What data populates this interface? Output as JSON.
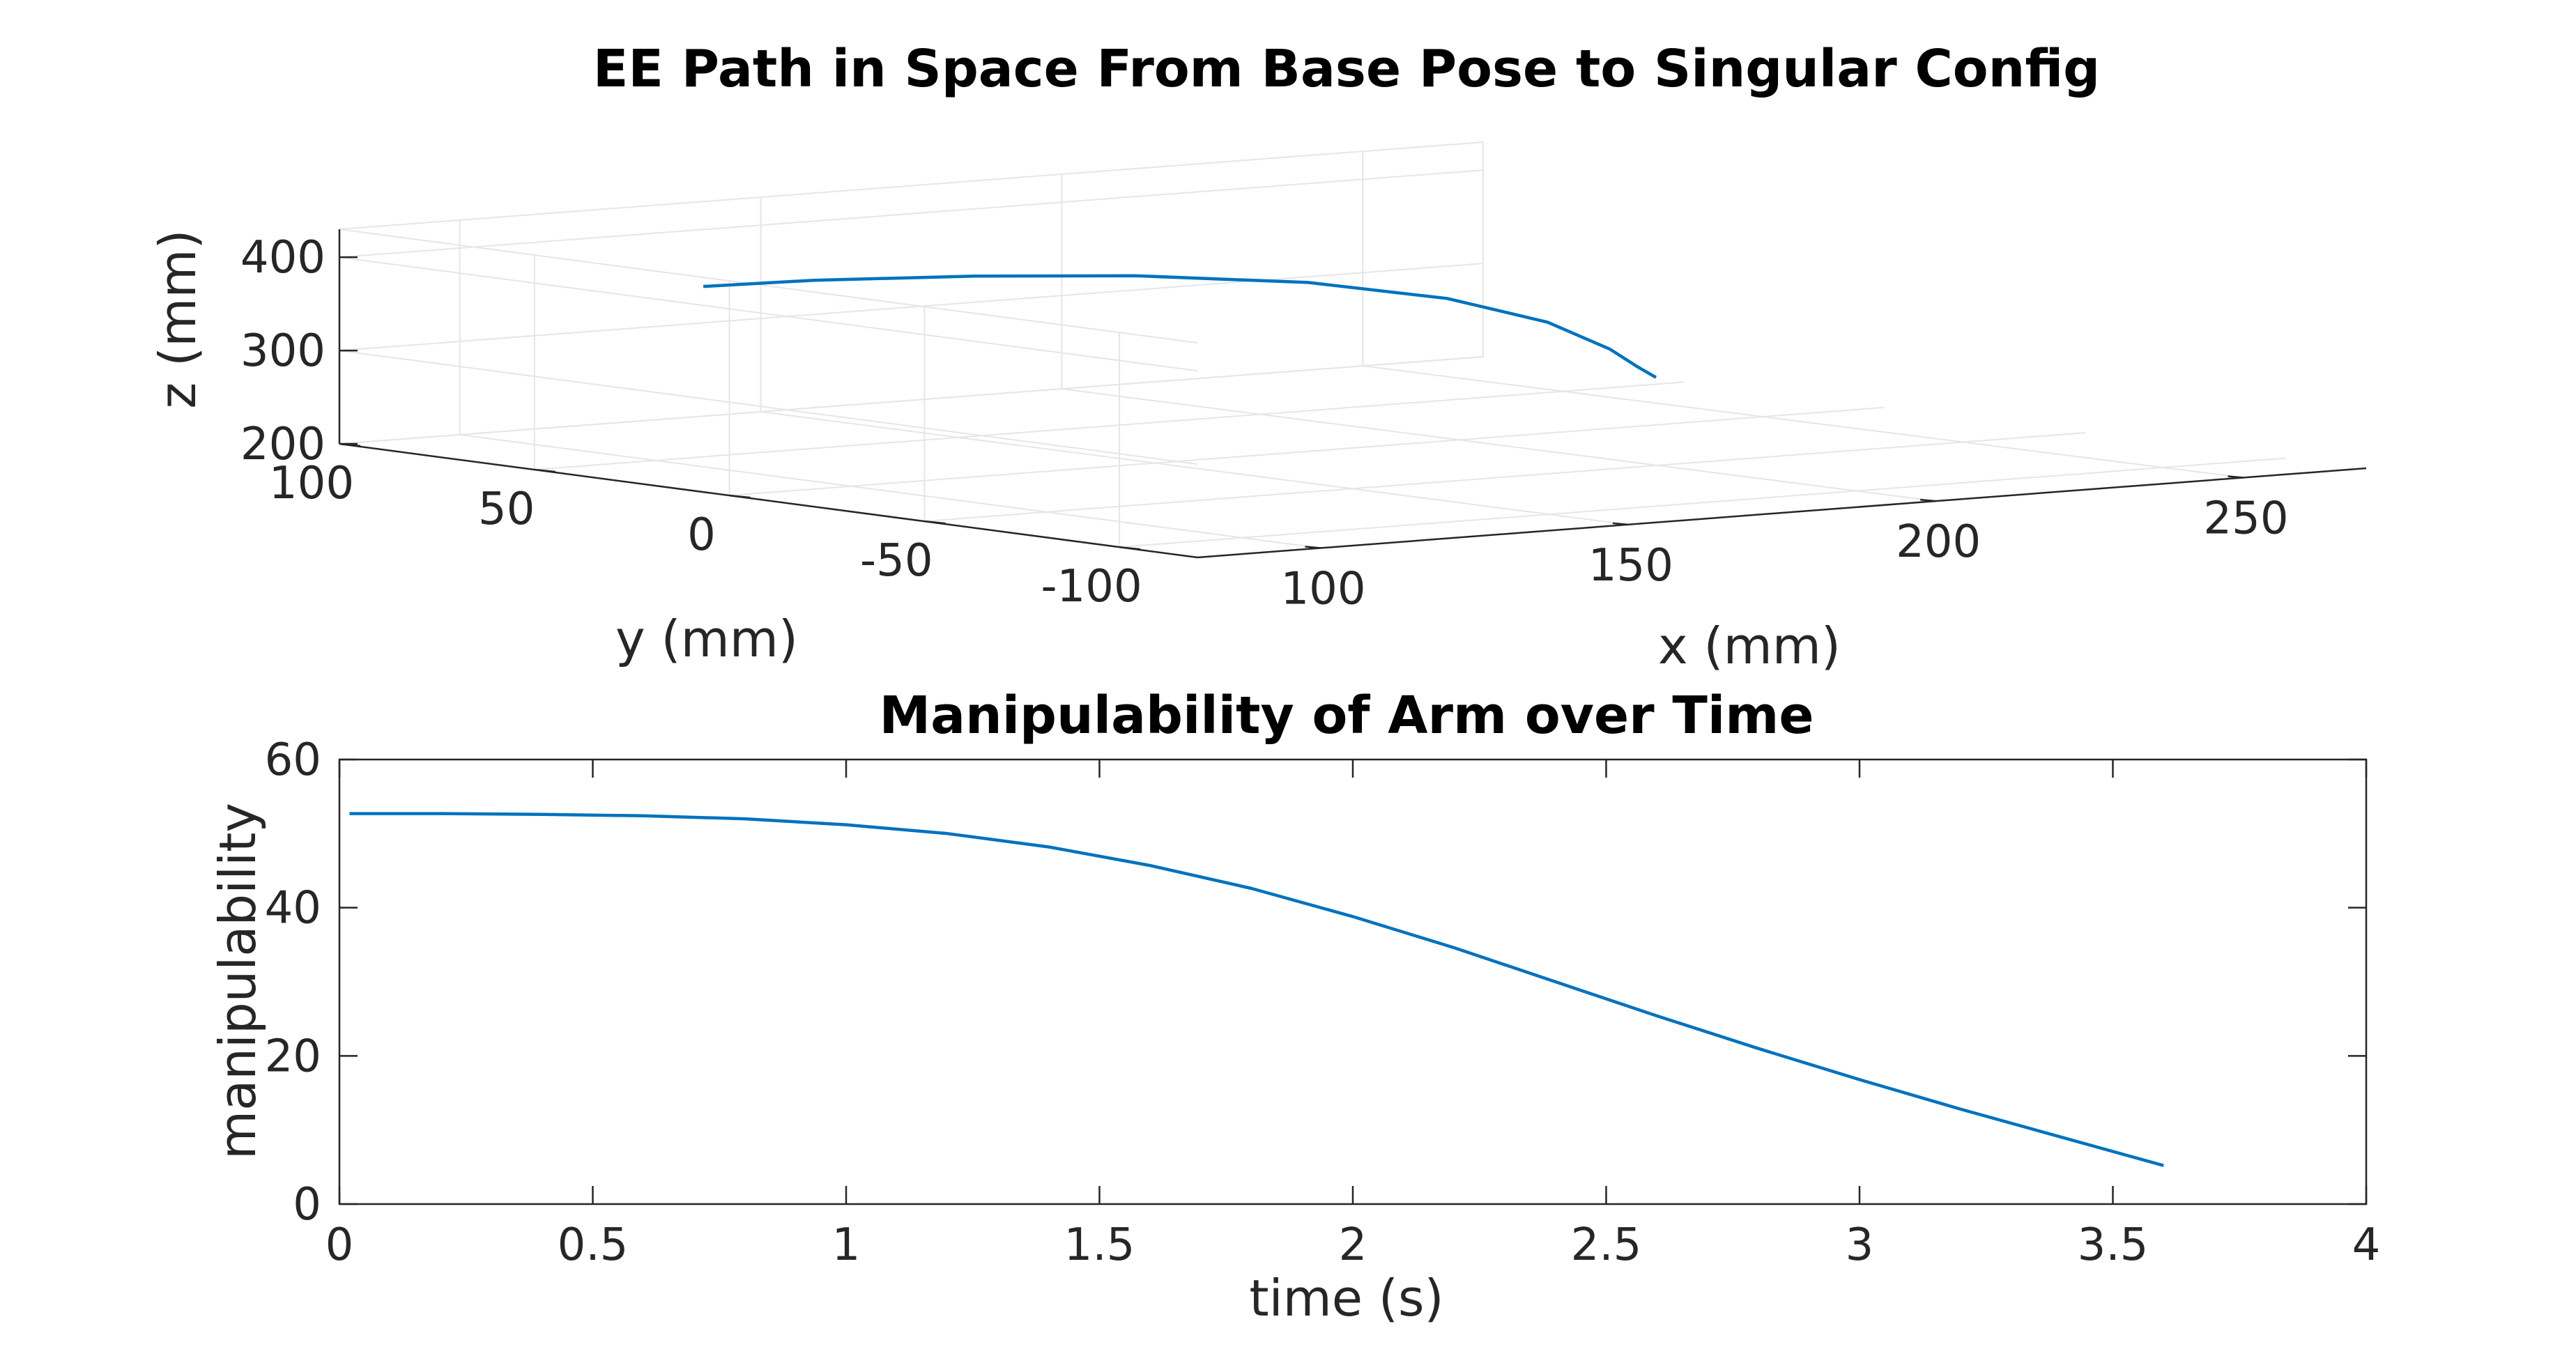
{
  "figure": {
    "background": "#ffffff",
    "line_color": "#0072BD",
    "axis_color": "#262626",
    "grid_color": "#e6e6e6"
  },
  "chart_data": [
    {
      "type": "line",
      "projection": "3d",
      "title": "EE Path in Space From Base Pose to Singular Config",
      "xlabel": "x (mm)",
      "ylabel": "y (mm)",
      "zlabel": "z (mm)",
      "xlim": [
        80,
        270
      ],
      "ylim": [
        -120,
        100
      ],
      "zlim": [
        200,
        430
      ],
      "xticks": [
        "100",
        "150",
        "200",
        "250"
      ],
      "yticks": [
        "100",
        "50",
        "0",
        "-50",
        "-100"
      ],
      "zticks": [
        "200",
        "300",
        "400"
      ],
      "grid": true,
      "series": [
        {
          "points": [
            {
              "x": 95.0,
              "y": 30.0,
              "z": 400.0
            },
            {
              "x": 110.0,
              "y": 25.0,
              "z": 402.0
            },
            {
              "x": 130.0,
              "y": 15.0,
              "z": 402.0
            },
            {
              "x": 150.0,
              "y": 5.0,
              "z": 398.0
            },
            {
              "x": 170.0,
              "y": -8.0,
              "z": 388.0
            },
            {
              "x": 185.0,
              "y": -20.0,
              "z": 370.0
            },
            {
              "x": 195.0,
              "y": -30.0,
              "z": 345.0
            },
            {
              "x": 200.0,
              "y": -38.0,
              "z": 318.0
            },
            {
              "x": 202.0,
              "y": -42.0,
              "z": 300.0
            },
            {
              "x": 203.0,
              "y": -45.0,
              "z": 290.0
            }
          ]
        }
      ]
    },
    {
      "type": "line",
      "title": "Manipulability of Arm over Time",
      "xlabel": "time (s)",
      "ylabel": "manipulability",
      "xlim": [
        0,
        4
      ],
      "ylim": [
        0,
        60
      ],
      "xticks": [
        "0",
        "0.5",
        "1",
        "1.5",
        "2",
        "2.5",
        "3",
        "3.5",
        "4"
      ],
      "yticks": [
        "0",
        "20",
        "40",
        "60"
      ],
      "grid": false,
      "series": [
        {
          "x": [
            0.02,
            0.2,
            0.4,
            0.6,
            0.8,
            1.0,
            1.2,
            1.4,
            1.6,
            1.8,
            2.0,
            2.2,
            2.4,
            2.6,
            2.8,
            3.0,
            3.2,
            3.4,
            3.6
          ],
          "values": [
            52.7,
            52.7,
            52.6,
            52.4,
            52.0,
            51.2,
            50.0,
            48.2,
            45.7,
            42.6,
            38.8,
            34.6,
            30.0,
            25.4,
            21.0,
            16.8,
            12.8,
            9.0,
            5.2
          ]
        }
      ]
    }
  ]
}
